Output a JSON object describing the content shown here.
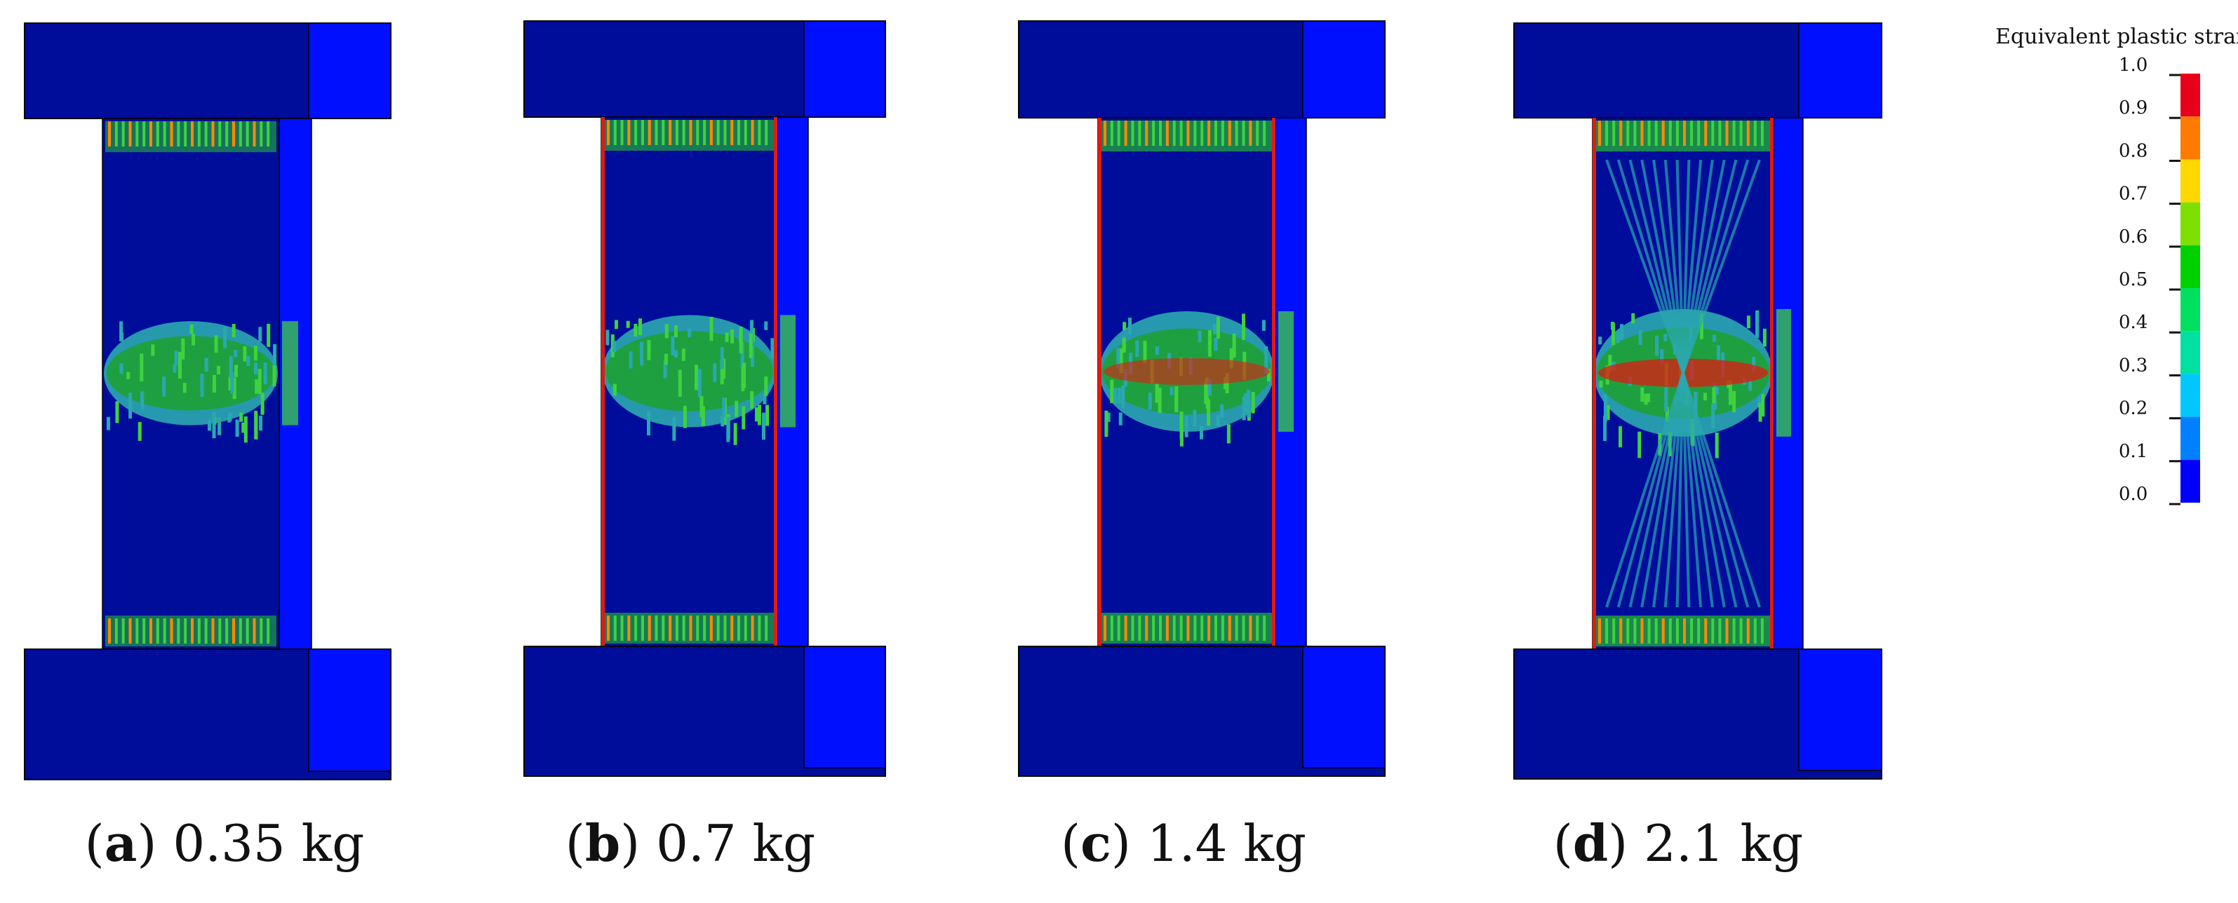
{
  "legend": {
    "title": "Equivalent plastic strain",
    "ticks": [
      "1.0",
      "0.9",
      "0.8",
      "0.7",
      "0.6",
      "0.5",
      "0.4",
      "0.3",
      "0.2",
      "0.1",
      "0.0"
    ],
    "colors_top_to_bottom": [
      "#e8001a",
      "#ff7a00",
      "#ffd800",
      "#7ee000",
      "#00d000",
      "#00e060",
      "#00e0a0",
      "#00c8ff",
      "#0080ff",
      "#0000ff"
    ]
  },
  "colors": {
    "dark_block": "#000d9a",
    "side_face": "#0010ff",
    "mid_green": "#1ea040",
    "bright_green": "#3ed23e",
    "cyan_band": "#2aa8b0",
    "hot_red": "#e21a10",
    "orange": "#ff8a00"
  },
  "panels": [
    {
      "letter": "a",
      "paren_open": "(",
      "paren_close": ")",
      "value": "0.35 kg"
    },
    {
      "letter": "b",
      "paren_open": "(",
      "paren_close": ")",
      "value": "0.7 kg"
    },
    {
      "letter": "c",
      "paren_open": "(",
      "paren_close": ")",
      "value": "1.4 kg"
    },
    {
      "letter": "d",
      "paren_open": "(",
      "paren_close": ")",
      "value": "2.1 kg"
    }
  ]
}
